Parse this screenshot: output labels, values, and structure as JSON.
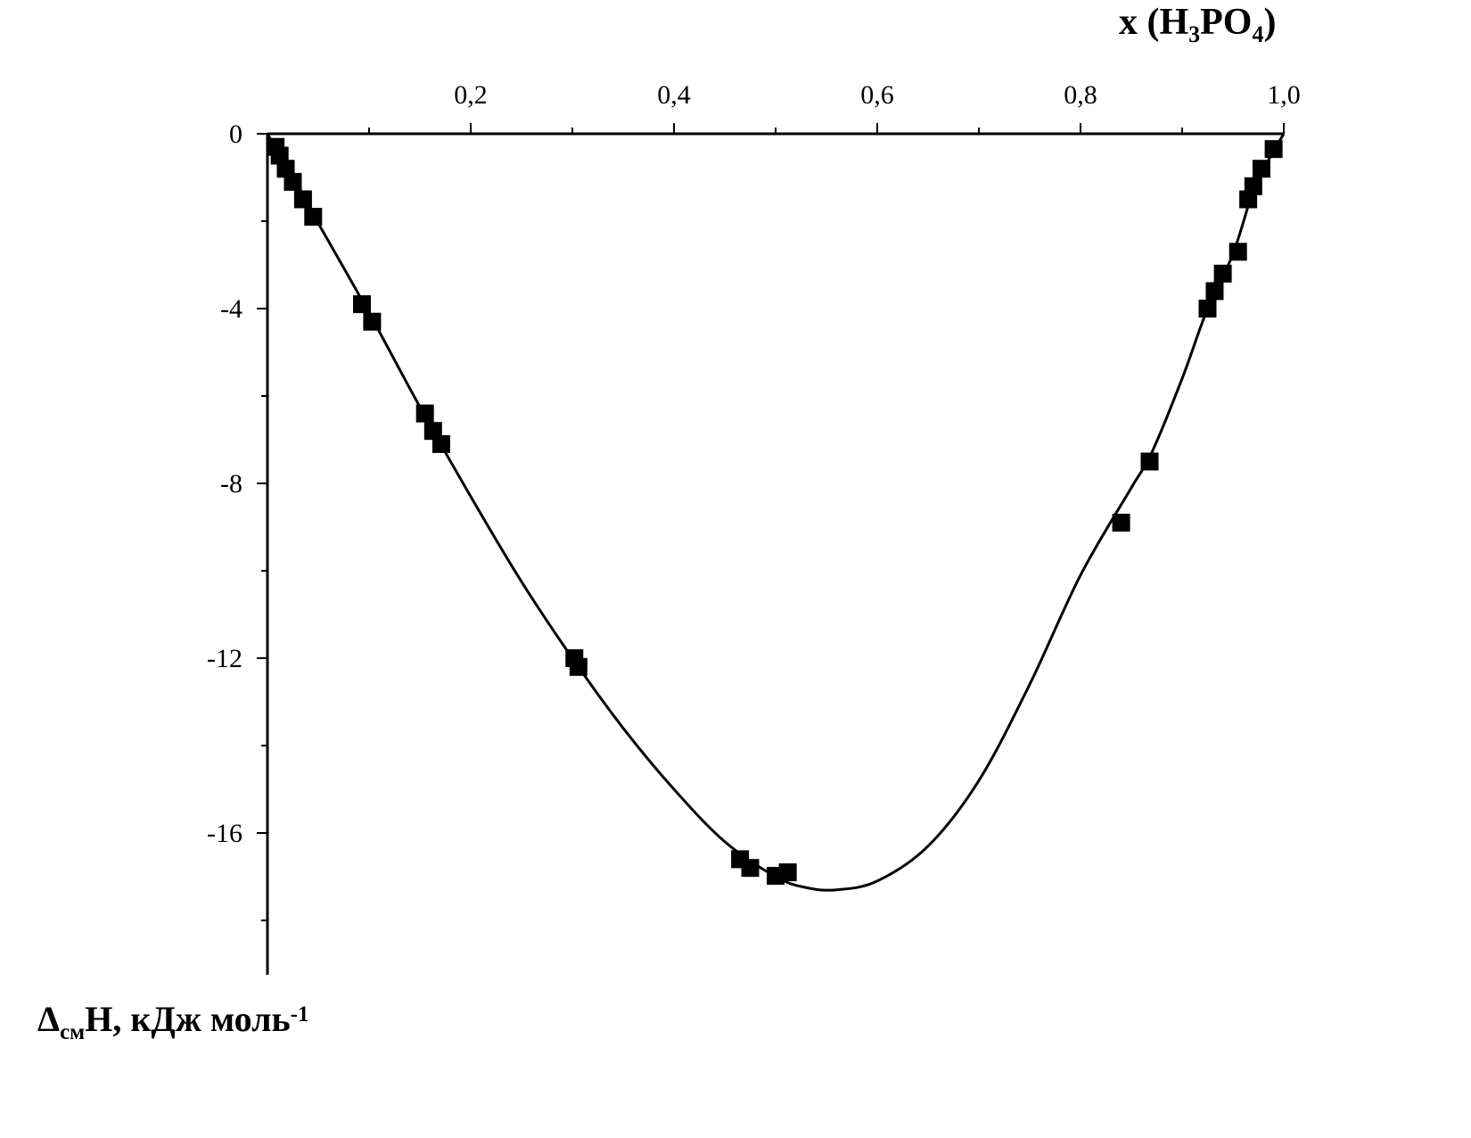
{
  "chart_data": {
    "type": "scatter",
    "title": "",
    "xlabel": {
      "parts": [
        {
          "text": "x (H",
          "style": "normal"
        },
        {
          "text": "3",
          "style": "sub"
        },
        {
          "text": "PO",
          "style": "normal"
        },
        {
          "text": "4",
          "style": "sub"
        },
        {
          "text": ")",
          "style": "normal"
        }
      ]
    },
    "ylabel": {
      "parts": [
        {
          "text": "Δ",
          "style": "normal"
        },
        {
          "text": "см",
          "style": "sub"
        },
        {
          "text": "H, кДж моль",
          "style": "normal"
        },
        {
          "text": "-1",
          "style": "sup"
        }
      ]
    },
    "xlim": [
      0,
      1
    ],
    "ylim": [
      -19,
      0
    ],
    "x_ticks": [
      {
        "value": 0.2,
        "label": "0,2"
      },
      {
        "value": 0.4,
        "label": "0,4"
      },
      {
        "value": 0.6,
        "label": "0,6"
      },
      {
        "value": 0.8,
        "label": "0,8"
      },
      {
        "value": 1.0,
        "label": "1,0"
      }
    ],
    "x_minor_ticks": [
      0.1,
      0.3,
      0.5,
      0.7,
      0.9
    ],
    "y_ticks": [
      {
        "value": 0,
        "label": "0"
      },
      {
        "value": -4,
        "label": "-4"
      },
      {
        "value": -8,
        "label": "-8"
      },
      {
        "value": -12,
        "label": "-12"
      },
      {
        "value": -16,
        "label": "-16"
      }
    ],
    "y_minor_ticks": [
      -2,
      -6,
      -10,
      -14,
      -18
    ],
    "grid": false,
    "x_axis_position": "top",
    "series": [
      {
        "marker": "square",
        "color": "#000000",
        "points": [
          [
            0.008,
            -0.3
          ],
          [
            0.012,
            -0.5
          ],
          [
            0.018,
            -0.8
          ],
          [
            0.025,
            -1.1
          ],
          [
            0.035,
            -1.5
          ],
          [
            0.045,
            -1.9
          ],
          [
            0.093,
            -3.9
          ],
          [
            0.103,
            -4.3
          ],
          [
            0.155,
            -6.4
          ],
          [
            0.163,
            -6.8
          ],
          [
            0.171,
            -7.1
          ],
          [
            0.302,
            -12.0
          ],
          [
            0.306,
            -12.2
          ],
          [
            0.465,
            -16.6
          ],
          [
            0.475,
            -16.8
          ],
          [
            0.5,
            -16.98
          ],
          [
            0.512,
            -16.9
          ],
          [
            0.84,
            -8.9
          ],
          [
            0.868,
            -7.5
          ],
          [
            0.925,
            -4.0
          ],
          [
            0.932,
            -3.6
          ],
          [
            0.94,
            -3.2
          ],
          [
            0.955,
            -2.7
          ],
          [
            0.965,
            -1.5
          ],
          [
            0.97,
            -1.2
          ],
          [
            0.978,
            -0.8
          ],
          [
            0.99,
            -0.35
          ]
        ]
      },
      {
        "type": "line",
        "color": "#000000",
        "curve": [
          [
            0.0,
            0.0
          ],
          [
            0.02,
            -0.85
          ],
          [
            0.05,
            -2.05
          ],
          [
            0.1,
            -4.1
          ],
          [
            0.15,
            -6.25
          ],
          [
            0.2,
            -8.3
          ],
          [
            0.25,
            -10.25
          ],
          [
            0.3,
            -12.0
          ],
          [
            0.35,
            -13.6
          ],
          [
            0.4,
            -15.0
          ],
          [
            0.45,
            -16.2
          ],
          [
            0.5,
            -17.0
          ],
          [
            0.53,
            -17.25
          ],
          [
            0.56,
            -17.3
          ],
          [
            0.6,
            -17.1
          ],
          [
            0.65,
            -16.3
          ],
          [
            0.7,
            -14.8
          ],
          [
            0.75,
            -12.6
          ],
          [
            0.8,
            -10.1
          ],
          [
            0.85,
            -8.1
          ],
          [
            0.87,
            -7.3
          ],
          [
            0.9,
            -5.6
          ],
          [
            0.925,
            -4.0
          ],
          [
            0.95,
            -2.75
          ],
          [
            0.97,
            -1.3
          ],
          [
            0.985,
            -0.6
          ],
          [
            1.0,
            0.0
          ]
        ]
      }
    ]
  }
}
